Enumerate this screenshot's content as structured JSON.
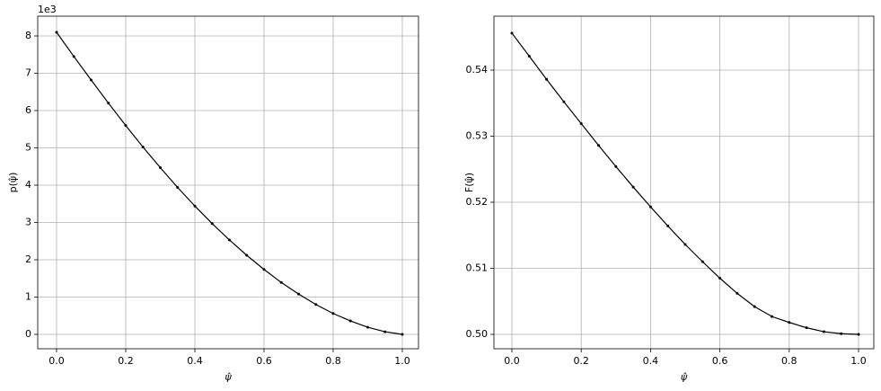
{
  "chart_data": [
    {
      "type": "line",
      "xlabel": "ψ̂",
      "ylabel": "p(ψ̂)",
      "offset_label": "1e3",
      "color": "#000000",
      "grid": true,
      "x": [
        0,
        0.05,
        0.1,
        0.15,
        0.2,
        0.25,
        0.3,
        0.35,
        0.4,
        0.45,
        0.5,
        0.55,
        0.6,
        0.65,
        0.7,
        0.75,
        0.8,
        0.85,
        0.9,
        0.95,
        1.0
      ],
      "values": [
        8.1,
        7.45,
        6.82,
        6.2,
        5.6,
        5.02,
        4.47,
        3.94,
        3.44,
        2.97,
        2.53,
        2.12,
        1.74,
        1.39,
        1.08,
        0.8,
        0.56,
        0.36,
        0.19,
        0.07,
        0
      ],
      "xlim": [
        -0.0545,
        1.0468
      ],
      "ylim": [
        -0.386,
        8.53
      ],
      "xticks": [
        {
          "value": 0,
          "label": "0.0"
        },
        {
          "value": 0.2,
          "label": "0.2"
        },
        {
          "value": 0.4,
          "label": "0.4"
        },
        {
          "value": 0.6,
          "label": "0.6"
        },
        {
          "value": 0.8,
          "label": "0.8"
        },
        {
          "value": 1.0,
          "label": "1.0"
        }
      ],
      "yticks": [
        0,
        1,
        2,
        3,
        4,
        5,
        6,
        7,
        8
      ]
    },
    {
      "type": "line",
      "xlabel": "ψ̂",
      "ylabel": "F(ψ̂)",
      "color": "#000000",
      "grid": true,
      "x": [
        0,
        0.05,
        0.1,
        0.15,
        0.2,
        0.25,
        0.3,
        0.35,
        0.4,
        0.45,
        0.5,
        0.55,
        0.6,
        0.65,
        0.7,
        0.75,
        0.8,
        0.85,
        0.9,
        0.95,
        1.0
      ],
      "values": [
        0.5456,
        0.5421,
        0.5386,
        0.5352,
        0.5319,
        0.5286,
        0.5254,
        0.5223,
        0.5193,
        0.5164,
        0.5136,
        0.511,
        0.5085,
        0.5062,
        0.5042,
        0.5027,
        0.5018,
        0.501,
        0.5004,
        0.5001,
        0.5
      ],
      "xlim": [
        -0.0518,
        1.044
      ],
      "ylim": [
        0.49782,
        0.54816
      ],
      "xticks": [
        {
          "value": 0,
          "label": "0.0"
        },
        {
          "value": 0.2,
          "label": "0.2"
        },
        {
          "value": 0.4,
          "label": "0.4"
        },
        {
          "value": 0.6,
          "label": "0.6"
        },
        {
          "value": 0.8,
          "label": "0.8"
        },
        {
          "value": 1.0,
          "label": "1.0"
        }
      ],
      "yticks": [
        {
          "value": 0.5,
          "label": "0.50"
        },
        {
          "value": 0.51,
          "label": "0.51"
        },
        {
          "value": 0.52,
          "label": "0.52"
        },
        {
          "value": 0.53,
          "label": "0.53"
        },
        {
          "value": 0.54,
          "label": "0.54"
        }
      ]
    }
  ]
}
